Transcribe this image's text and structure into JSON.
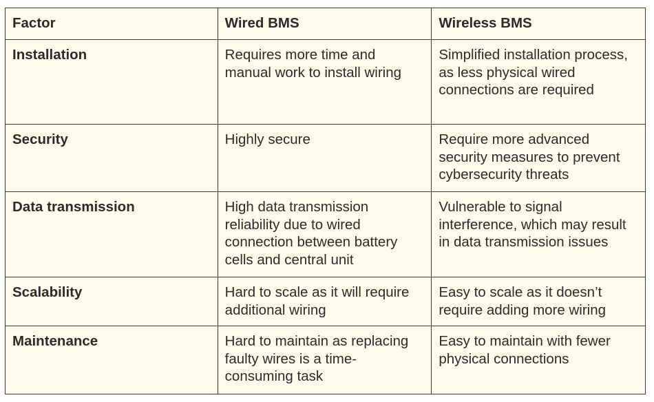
{
  "table": {
    "headers": [
      "Factor",
      "Wired BMS",
      "Wireless BMS"
    ],
    "rows": [
      [
        "Installation",
        "Requires more time and manual work to install wiring",
        "Simplified installation process, as less physical wired connections are required"
      ],
      [
        "Security",
        "Highly secure",
        "Require more advanced security measures to prevent cybersecurity threats"
      ],
      [
        "Data transmission",
        "High data transmission reliability due to wired connection between battery cells and central unit",
        "Vulnerable to signal interference, which may result in data transmission issues"
      ],
      [
        "Scalability",
        "Hard to scale as it will require additional wiring",
        "Easy to scale as it doesn’t require adding more wiring"
      ],
      [
        "Maintenance",
        "Hard to maintain as replacing faulty wires is a time-consuming task",
        "Easy to maintain with fewer physical connections"
      ]
    ],
    "colors": {
      "background": "#fffbea",
      "border": "#3a3a3a",
      "text": "#2b2b2b"
    }
  }
}
